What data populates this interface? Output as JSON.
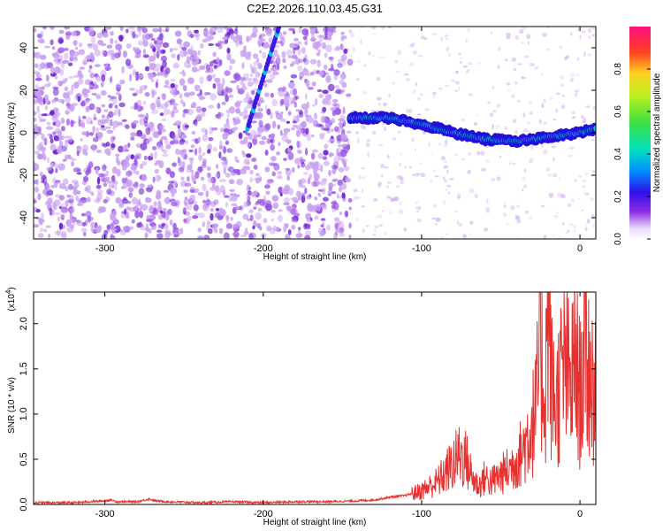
{
  "chart_data": [
    {
      "type": "heatmap",
      "title": "C2E2.2026.110.03.45.G31",
      "xlabel": "Height of straight line (km)",
      "ylabel": "Frequency (Hz)",
      "xlim": [
        -345,
        10
      ],
      "ylim": [
        -50,
        50
      ],
      "xticks": [
        -300,
        -200,
        -100,
        0
      ],
      "xtick_labels": [
        "-300",
        "-200",
        "-100",
        "0"
      ],
      "yticks": [
        -40,
        -20,
        0,
        20,
        40
      ],
      "ytick_labels": [
        "-40",
        "-20",
        "0",
        "20",
        "40"
      ],
      "noise_region_x": [
        -345,
        -145
      ],
      "streak_x": [
        -210,
        -190
      ],
      "streak_y": [
        2,
        50
      ],
      "signal_track": {
        "x": [
          -145,
          -120,
          -100,
          -80,
          -60,
          -40,
          -20,
          0,
          10
        ],
        "y": [
          7,
          7,
          4,
          0,
          -3,
          -4,
          -2,
          0,
          2
        ]
      },
      "colorbar": {
        "label": "Normalized spectral amplitude",
        "range": [
          0.0,
          1.0
        ],
        "ticks": [
          0.0,
          0.2,
          0.4,
          0.6,
          0.8
        ],
        "tick_labels": [
          "0.0",
          "0.2",
          "0.4",
          "0.6",
          "0.8"
        ]
      },
      "colors": {
        "low": "#c9a0f2",
        "mid_low": "#6a1fd0",
        "mid": "#00c8e0",
        "mid_high": "#40e040",
        "high": "#ff2020"
      }
    },
    {
      "type": "line",
      "xlabel": "Height of straight line (km)",
      "ylabel": "SNR (10 * v/v)",
      "exponent_label": "(x10",
      "exponent_power": "4",
      "exponent_close": ")",
      "xlim": [
        -345,
        10
      ],
      "ylim": [
        0,
        2.35
      ],
      "xticks": [
        -300,
        -200,
        -100,
        0
      ],
      "xtick_labels": [
        "-300",
        "-200",
        "-100",
        "0"
      ],
      "yticks": [
        0.0,
        0.5,
        1.0,
        1.5,
        2.0
      ],
      "ytick_labels": [
        "0.0",
        "0.5",
        "1.0",
        "1.5",
        "2.0"
      ],
      "series": [
        {
          "name": "SNR",
          "color": "#e8312f",
          "x": [
            -345,
            -320,
            -310,
            -300,
            -296,
            -292,
            -280,
            -272,
            -268,
            -260,
            -240,
            -220,
            -200,
            -180,
            -160,
            -140,
            -130,
            -120,
            -110,
            -100,
            -95,
            -90,
            -85,
            -80,
            -76,
            -72,
            -68,
            -64,
            -60,
            -56,
            -52,
            -48,
            -44,
            -40,
            -36,
            -32,
            -28,
            -25,
            -22,
            -20,
            -18,
            -15,
            -12,
            -9,
            -6,
            -3,
            0,
            3,
            6,
            9,
            10
          ],
          "y": [
            0.02,
            0.02,
            0.03,
            0.04,
            0.05,
            0.03,
            0.03,
            0.06,
            0.04,
            0.03,
            0.02,
            0.03,
            0.02,
            0.03,
            0.03,
            0.04,
            0.05,
            0.08,
            0.1,
            0.15,
            0.2,
            0.25,
            0.35,
            0.45,
            0.55,
            0.5,
            0.3,
            0.2,
            0.3,
            0.25,
            0.3,
            0.35,
            0.4,
            0.5,
            0.6,
            0.8,
            1.0,
            1.7,
            1.2,
            2.3,
            1.3,
            1.1,
            1.4,
            1.5,
            1.3,
            1.6,
            1.2,
            1.7,
            1.45,
            1.3,
            1.15
          ]
        }
      ]
    }
  ]
}
